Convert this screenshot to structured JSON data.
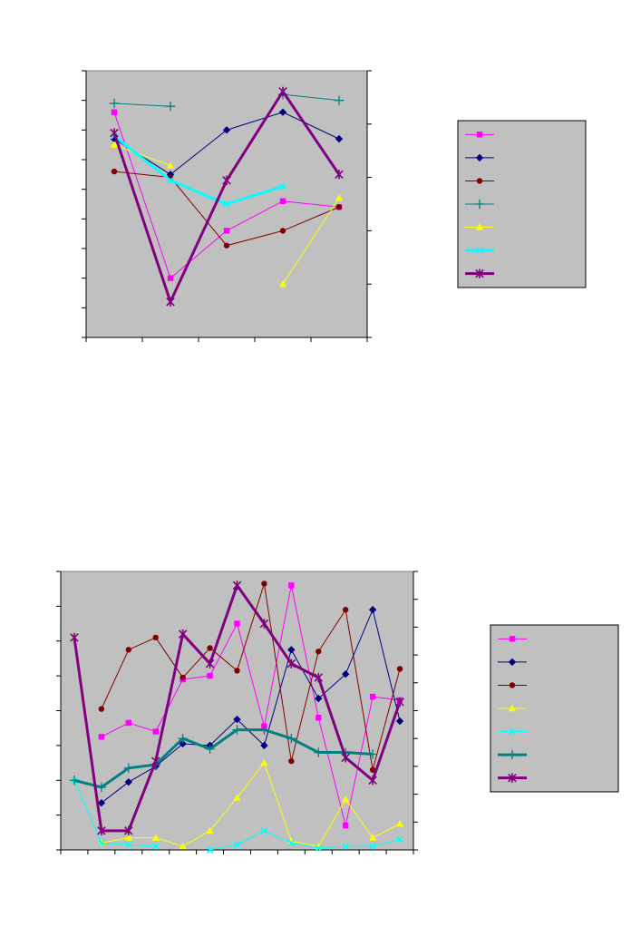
{
  "chart_data": [
    {
      "type": "line",
      "title": "",
      "xlabel": "",
      "ylabel": "",
      "x": [
        1,
        2,
        3,
        4,
        5
      ],
      "xlim": [
        0.5,
        5.5
      ],
      "ylim_left": [
        0,
        9
      ],
      "ylim_right": [
        0,
        5
      ],
      "grid": false,
      "legend": "right",
      "series": [
        {
          "marker": "square",
          "color": "#ff00ff",
          "axis": "left",
          "width": 1,
          "values": [
            7.6,
            2.0,
            3.6,
            4.6,
            4.4
          ]
        },
        {
          "marker": "diamond",
          "color": "#000080",
          "axis": "left",
          "width": 1,
          "values": [
            6.7,
            5.5,
            7.0,
            7.6,
            6.7
          ]
        },
        {
          "marker": "circle",
          "color": "#800000",
          "axis": "left",
          "width": 1,
          "values": [
            5.6,
            5.4,
            3.1,
            3.6,
            4.4
          ]
        },
        {
          "marker": "plus",
          "color": "#008080",
          "axis": "left",
          "width": 1,
          "values": [
            7.9,
            7.8,
            null,
            8.2,
            8.0
          ]
        },
        {
          "marker": "triangle",
          "color": "#ffff00",
          "axis": "left",
          "width": 1,
          "values": [
            6.5,
            5.8,
            null,
            1.8,
            4.7
          ]
        },
        {
          "marker": "x",
          "color": "#00ffff",
          "axis": "left",
          "width": 3,
          "values": [
            6.8,
            5.3,
            4.5,
            5.1,
            null
          ]
        },
        {
          "marker": "star",
          "color": "#800080",
          "axis": "left",
          "width": 3,
          "values": [
            6.9,
            1.2,
            5.3,
            8.3,
            5.5
          ]
        }
      ]
    },
    {
      "type": "line",
      "title": "",
      "xlabel": "",
      "ylabel": "",
      "x": [
        1,
        2,
        3,
        4,
        5,
        6,
        7,
        8,
        9,
        10,
        11,
        12,
        13
      ],
      "xlim": [
        0.5,
        13.5
      ],
      "ylim_left": [
        0,
        8
      ],
      "ylim_right": [
        0,
        10
      ],
      "grid": false,
      "legend": "right",
      "series": [
        {
          "marker": "square",
          "color": "#ff00ff",
          "axis": "left",
          "width": 1,
          "values": [
            null,
            3.25,
            3.65,
            3.4,
            4.9,
            5.0,
            6.5,
            3.55,
            7.6,
            3.8,
            0.7,
            4.4,
            4.3
          ]
        },
        {
          "marker": "diamond",
          "color": "#000080",
          "axis": "left",
          "width": 1,
          "values": [
            null,
            1.35,
            1.95,
            2.4,
            3.05,
            3.0,
            3.75,
            3.0,
            5.75,
            4.35,
            5.05,
            6.9,
            3.7
          ]
        },
        {
          "marker": "circle",
          "color": "#800000",
          "axis": "left",
          "width": 1,
          "values": [
            null,
            4.05,
            5.75,
            6.1,
            4.95,
            5.8,
            5.15,
            7.65,
            2.55,
            5.7,
            6.9,
            2.3,
            5.2
          ]
        },
        {
          "marker": "triangle",
          "color": "#ffff00",
          "axis": "left",
          "width": 1,
          "values": [
            null,
            0.2,
            0.35,
            0.35,
            0.1,
            0.55,
            1.5,
            2.5,
            0.25,
            0.1,
            1.45,
            0.35,
            0.75
          ]
        },
        {
          "marker": "x",
          "color": "#00ffff",
          "axis": "left",
          "width": 1,
          "values": [
            2.0,
            0.2,
            0.15,
            0.1,
            null,
            0.0,
            0.15,
            0.55,
            0.2,
            0.05,
            0.1,
            0.1,
            0.3
          ]
        },
        {
          "marker": "plus",
          "color": "#008080",
          "axis": "left",
          "width": 3,
          "values": [
            2.0,
            1.8,
            2.35,
            2.45,
            3.2,
            2.9,
            3.45,
            3.45,
            3.2,
            2.8,
            2.8,
            2.75,
            null
          ]
        },
        {
          "marker": "star",
          "color": "#800080",
          "axis": "left",
          "width": 3,
          "values": [
            6.1,
            0.55,
            0.55,
            2.55,
            6.2,
            5.35,
            7.6,
            6.5,
            5.35,
            4.95,
            2.65,
            2.0,
            4.25
          ]
        }
      ]
    }
  ]
}
